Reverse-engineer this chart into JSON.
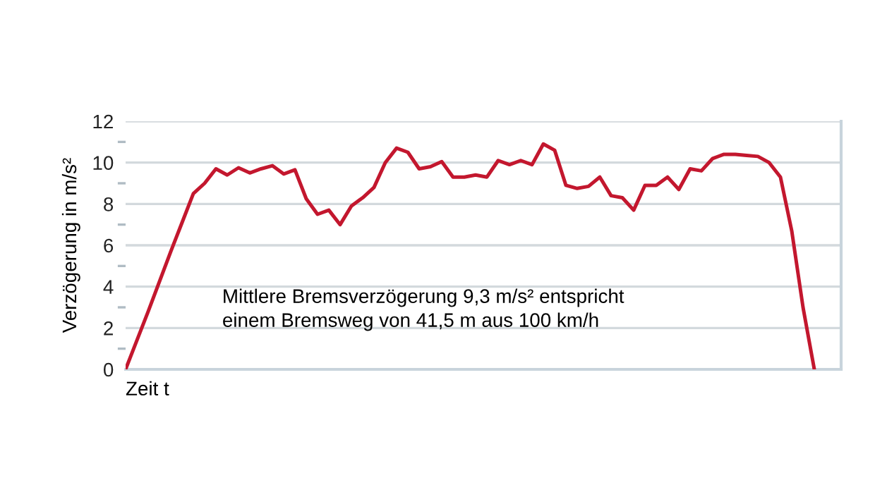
{
  "chart_data": {
    "type": "line",
    "ylabel": "Verzögerung in m/s²",
    "xlabel": "Zeit t",
    "annotations": [
      "Mittlere Bremsverzögerung 9,3 m/s² entspricht\neinem Bremsweg von 41,5 m aus 100 km/h"
    ],
    "categories": [
      null,
      null,
      null,
      null,
      null,
      null,
      null,
      null,
      null,
      null,
      null,
      null,
      null,
      null,
      null,
      null,
      null,
      null,
      null,
      null,
      null,
      null,
      null,
      null,
      null,
      null,
      null,
      null,
      null,
      null,
      null,
      null,
      null,
      null,
      null,
      null,
      null,
      null,
      null,
      null,
      null,
      null,
      null,
      null,
      null,
      null,
      null,
      null,
      null,
      null,
      null,
      null,
      null,
      null,
      null,
      null,
      null,
      null,
      null,
      null,
      null,
      null
    ],
    "series": [
      {
        "color": "#c3172e",
        "values": [
          0,
          1.4,
          2.8,
          4.25,
          5.7,
          7.1,
          8.5,
          9.0,
          9.7,
          9.4,
          9.75,
          9.5,
          9.7,
          9.85,
          9.45,
          9.65,
          8.25,
          7.5,
          7.7,
          7.0,
          7.9,
          8.3,
          8.8,
          10.0,
          10.7,
          10.5,
          9.7,
          9.8,
          10.05,
          9.3,
          9.3,
          9.4,
          9.3,
          10.1,
          9.9,
          10.1,
          9.9,
          10.9,
          10.6,
          8.9,
          8.75,
          8.85,
          9.3,
          8.4,
          8.3,
          7.7,
          8.9,
          8.9,
          9.3,
          8.7,
          9.7,
          9.6,
          10.2,
          10.4,
          10.4,
          10.35,
          10.3,
          10.0,
          9.3,
          6.7,
          3.0,
          0
        ]
      }
    ],
    "ylim": [
      0,
      12
    ],
    "yticks": [
      0,
      {
        "value": 1,
        "label": null
      },
      2,
      {
        "value": 3,
        "label": null
      },
      4,
      {
        "value": 5,
        "label": null
      },
      6,
      {
        "value": 7,
        "label": null
      },
      8,
      {
        "value": 9,
        "label": null
      },
      10,
      {
        "value": 11,
        "label": null
      },
      12
    ],
    "grid": "y",
    "legend": false,
    "marker": "none",
    "line_style": "solid"
  }
}
